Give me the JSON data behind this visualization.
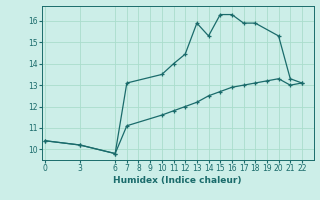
{
  "xlabel": "Humidex (Indice chaleur)",
  "bg_color": "#cceee8",
  "grid_color": "#aaddcc",
  "line_color": "#1a6b6b",
  "xticks": [
    0,
    3,
    6,
    7,
    8,
    9,
    10,
    11,
    12,
    13,
    14,
    15,
    16,
    17,
    18,
    19,
    20,
    21,
    22
  ],
  "yticks": [
    10,
    11,
    12,
    13,
    14,
    15,
    16
  ],
  "xlim": [
    -0.3,
    23.0
  ],
  "ylim": [
    9.5,
    16.7
  ],
  "series1_x": [
    0,
    3,
    6,
    7,
    10,
    11,
    12,
    13,
    14,
    15,
    16,
    17,
    18,
    20,
    21,
    22
  ],
  "series1_y": [
    10.4,
    10.2,
    9.8,
    13.1,
    13.5,
    14.0,
    14.45,
    15.9,
    15.3,
    16.3,
    16.3,
    15.9,
    15.9,
    15.3,
    13.3,
    13.1
  ],
  "series2_x": [
    0,
    3,
    6,
    7,
    10,
    11,
    12,
    13,
    14,
    15,
    16,
    17,
    18,
    19,
    20,
    21,
    22
  ],
  "series2_y": [
    10.4,
    10.2,
    9.8,
    11.1,
    11.6,
    11.8,
    12.0,
    12.2,
    12.5,
    12.7,
    12.9,
    13.0,
    13.1,
    13.2,
    13.3,
    13.0,
    13.1
  ],
  "xlabel_fontsize": 6.5,
  "tick_fontsize": 5.5
}
